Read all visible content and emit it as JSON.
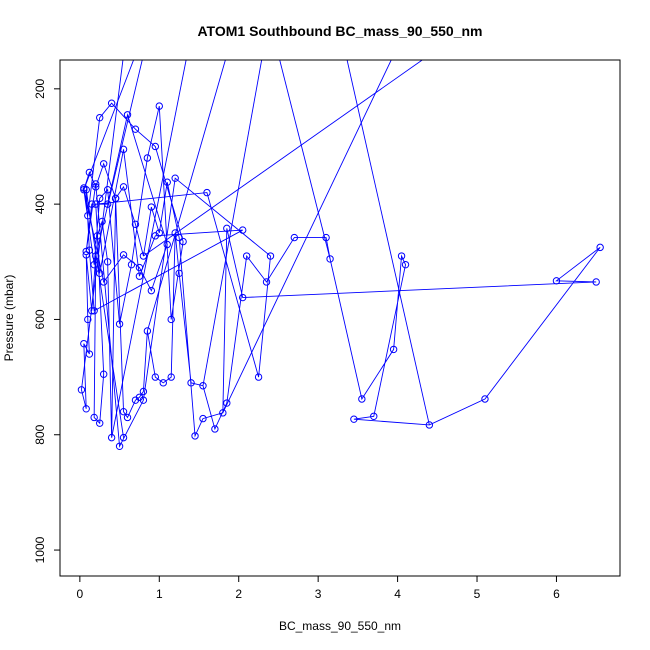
{
  "chart_data": {
    "type": "line",
    "title": "ATOM1 Southbound BC_mass_90_550_nm",
    "xlabel": "BC_mass_90_550_nm",
    "ylabel": "Pressure (mbar)",
    "xlim": [
      -0.25,
      6.8
    ],
    "ylim": [
      1045,
      150
    ],
    "y_reversed": true,
    "x_ticks": [
      0,
      1,
      2,
      3,
      4,
      5,
      6
    ],
    "y_ticks": [
      200,
      400,
      600,
      800,
      1000
    ],
    "grid": false,
    "legend": "none",
    "series": [
      {
        "color": "#0000ff",
        "marker": "open-circle",
        "x": [
          0.02,
          0.08,
          0.05,
          0.12,
          0.1,
          0.08,
          0.15,
          0.2,
          0.18,
          0.25,
          0.3,
          0.22,
          0.28,
          0.35,
          0.4,
          0.45,
          0.55,
          0.6,
          0.7,
          0.75,
          0.8,
          0.85,
          0.95,
          1.05,
          1.15,
          1.2,
          1.25,
          1.4,
          1.55,
          1.7,
          1.85,
          2.1,
          2.35,
          2.7,
          3.1,
          3.15,
          3.55,
          3.95,
          4.05,
          4.1,
          3.7,
          3.45,
          4.4,
          5.1,
          6.55,
          6.0,
          6.5,
          2.05,
          1.85,
          1.8,
          1.55,
          1.45,
          1.25,
          1.1,
          1.0,
          0.9,
          0.8,
          0.7,
          0.55,
          0.45,
          0.3,
          0.2,
          0.12,
          0.05,
          0.18,
          0.25,
          0.35,
          0.5,
          0.65,
          0.85,
          1.0,
          1.15,
          1.3,
          0.95,
          0.7,
          0.4,
          0.25,
          0.1,
          0.05,
          0.3,
          0.55,
          0.75,
          0.9,
          1.1,
          0.6,
          0.35,
          0.15,
          0.08,
          0.2,
          0.5,
          0.8,
          1.2,
          2.4,
          2.25,
          1.6,
          0.2,
          0.25,
          0.55,
          0.75,
          0.95,
          2.05,
          0.18,
          0.12,
          0.08,
          0.55
        ],
        "y": [
          722,
          755,
          642,
          660,
          600,
          488,
          585,
          490,
          770,
          780,
          695,
          455,
          430,
          500,
          805,
          390,
          760,
          770,
          740,
          735,
          725,
          620,
          700,
          710,
          700,
          450,
          520,
          710,
          715,
          790,
          745,
          490,
          535,
          458,
          458,
          495,
          738,
          652,
          490,
          505,
          768,
          773,
          783,
          738,
          475,
          533,
          535,
          562,
          442,
          762,
          772,
          802,
          458,
          362,
          450,
          405,
          490,
          435,
          370,
          390,
          330,
          370,
          345,
          375,
          505,
          390,
          375,
          608,
          505,
          320,
          230,
          600,
          465,
          300,
          270,
          225,
          250,
          420,
          372,
          535,
          488,
          510,
          550,
          470,
          245,
          400,
          400,
          482,
          365,
          820,
          740,
          355,
          490,
          700,
          380,
          400,
          520,
          305,
          525,
          455,
          445,
          585,
          480,
          375,
          805
        ]
      }
    ],
    "offscreen_endpoints": [
      [
        0.55,
        150
      ],
      [
        0.8,
        150
      ],
      [
        1.35,
        150
      ],
      [
        1.85,
        150
      ],
      [
        2.3,
        150
      ],
      [
        2.5,
        150
      ],
      [
        3.35,
        150
      ],
      [
        3.95,
        150
      ],
      [
        4.4,
        150
      ],
      [
        0.7,
        150
      ]
    ]
  }
}
